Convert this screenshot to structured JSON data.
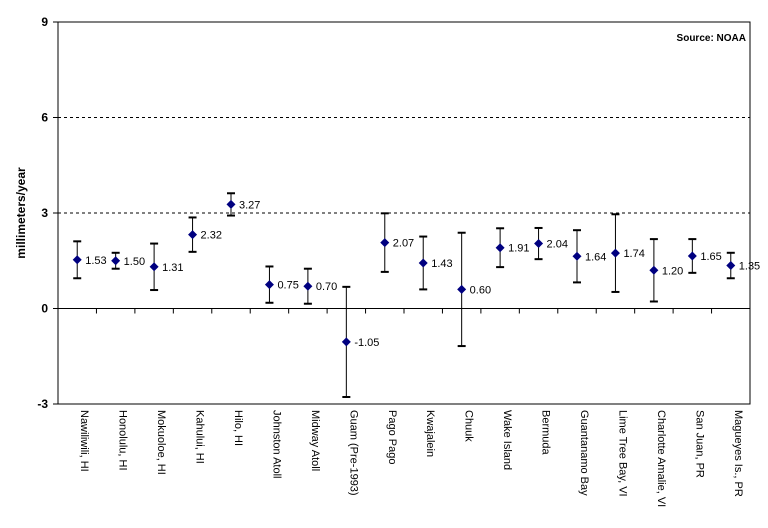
{
  "chart_data": {
    "type": "scatter",
    "ylabel": "millimeters/year",
    "annotation": "Source:  NOAA",
    "ylim": [
      -3,
      9
    ],
    "yticks": [
      -3,
      0,
      3,
      6,
      9
    ],
    "gridlines": [
      3,
      6
    ],
    "categories": [
      "Nawiliwili, HI",
      "Honolulu, HI",
      "Mokuoloe, HI",
      "Kahului, HI",
      "Hilo, HI",
      "Johnston Atoll",
      "Midway Atoll",
      "Guam (Pre-1993)",
      "Pago Pago",
      "Kwajalein",
      "Chuuk",
      "Wake Island",
      "Bermuda",
      "Guantanamo Bay",
      "Lime Tree Bay, VI",
      "Charlotte Amalie, VI",
      "San Juan, PR",
      "Magueyes Is., PR"
    ],
    "values": [
      1.53,
      1.5,
      1.31,
      2.32,
      3.27,
      0.75,
      0.7,
      -1.05,
      2.07,
      1.43,
      0.6,
      1.91,
      2.04,
      1.64,
      1.74,
      1.2,
      1.65,
      1.35
    ],
    "labels": [
      "1.53",
      "1.50",
      "1.31",
      "2.32",
      "3.27",
      "0.75",
      "0.70",
      "-1.05",
      "2.07",
      "1.43",
      "0.60",
      "1.91",
      "2.04",
      "1.64",
      "1.74",
      "1.20",
      "1.65",
      "1.35"
    ],
    "error_low": [
      0.95,
      1.25,
      0.58,
      1.78,
      2.92,
      0.18,
      0.15,
      -2.78,
      1.15,
      0.6,
      -1.18,
      1.3,
      1.55,
      0.82,
      0.52,
      0.22,
      1.12,
      0.95
    ],
    "error_high": [
      2.11,
      1.75,
      2.04,
      2.86,
      3.62,
      1.32,
      1.25,
      0.68,
      2.99,
      2.26,
      2.38,
      2.52,
      2.53,
      2.46,
      2.96,
      2.18,
      2.18,
      1.75
    ],
    "marker_color": "#000080",
    "grid": "dashed"
  }
}
